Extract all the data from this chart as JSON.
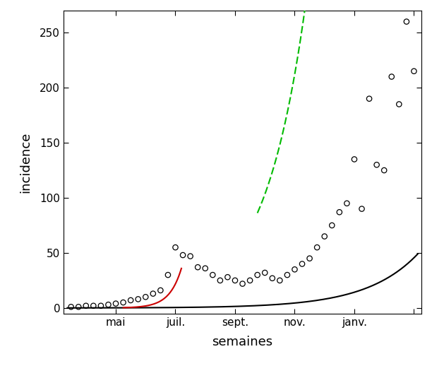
{
  "scatter_x": [
    1,
    2,
    3,
    4,
    5,
    6,
    7,
    8,
    9,
    10,
    11,
    12,
    13,
    14,
    15,
    16,
    17,
    18,
    19,
    20,
    21,
    22,
    23,
    24,
    25,
    26,
    27,
    28,
    29,
    30,
    31,
    32,
    33,
    34,
    35,
    36,
    37,
    38,
    39,
    40,
    41,
    42,
    43,
    44,
    45,
    46,
    47
  ],
  "scatter_y": [
    1,
    1,
    2,
    2,
    2,
    3,
    4,
    5,
    7,
    8,
    10,
    13,
    16,
    30,
    55,
    48,
    47,
    37,
    36,
    30,
    25,
    28,
    25,
    22,
    25,
    30,
    32,
    27,
    25,
    30,
    35,
    40,
    45,
    55,
    65,
    75,
    87,
    95,
    135,
    90,
    190,
    130,
    125,
    210,
    185,
    260,
    215
  ],
  "xlim": [
    0,
    48
  ],
  "ylim": [
    -5,
    270
  ],
  "xlabel": "semaines",
  "ylabel": "incidence",
  "xtick_positions": [
    7,
    15,
    23,
    31,
    39,
    47
  ],
  "xtick_labels": [
    "mai",
    "juil.",
    "sept.",
    "nov.",
    "janv.",
    ""
  ],
  "ytick_positions": [
    0,
    50,
    100,
    150,
    200,
    250
  ],
  "ytick_labels": [
    "0",
    "50",
    "100",
    "150",
    "200",
    "250"
  ],
  "black_curve_color": "#000000",
  "red_curve_color": "#cc0000",
  "green_curve_color": "#00bb00",
  "background_color": "#ffffff",
  "panel_color": "#ffffff",
  "marker_color": "#000000",
  "line_width": 1.5,
  "black_curve_params": [
    0.05,
    0.145,
    0.0
  ],
  "red_curve_x_start": 8,
  "red_curve_x_end": 15.8,
  "red_curve_params": [
    0.002,
    0.62,
    0.0
  ],
  "green_curve_x_start": 26,
  "green_curve_x_end": 47,
  "green_curve_params": [
    0.8,
    0.18,
    0.0
  ]
}
